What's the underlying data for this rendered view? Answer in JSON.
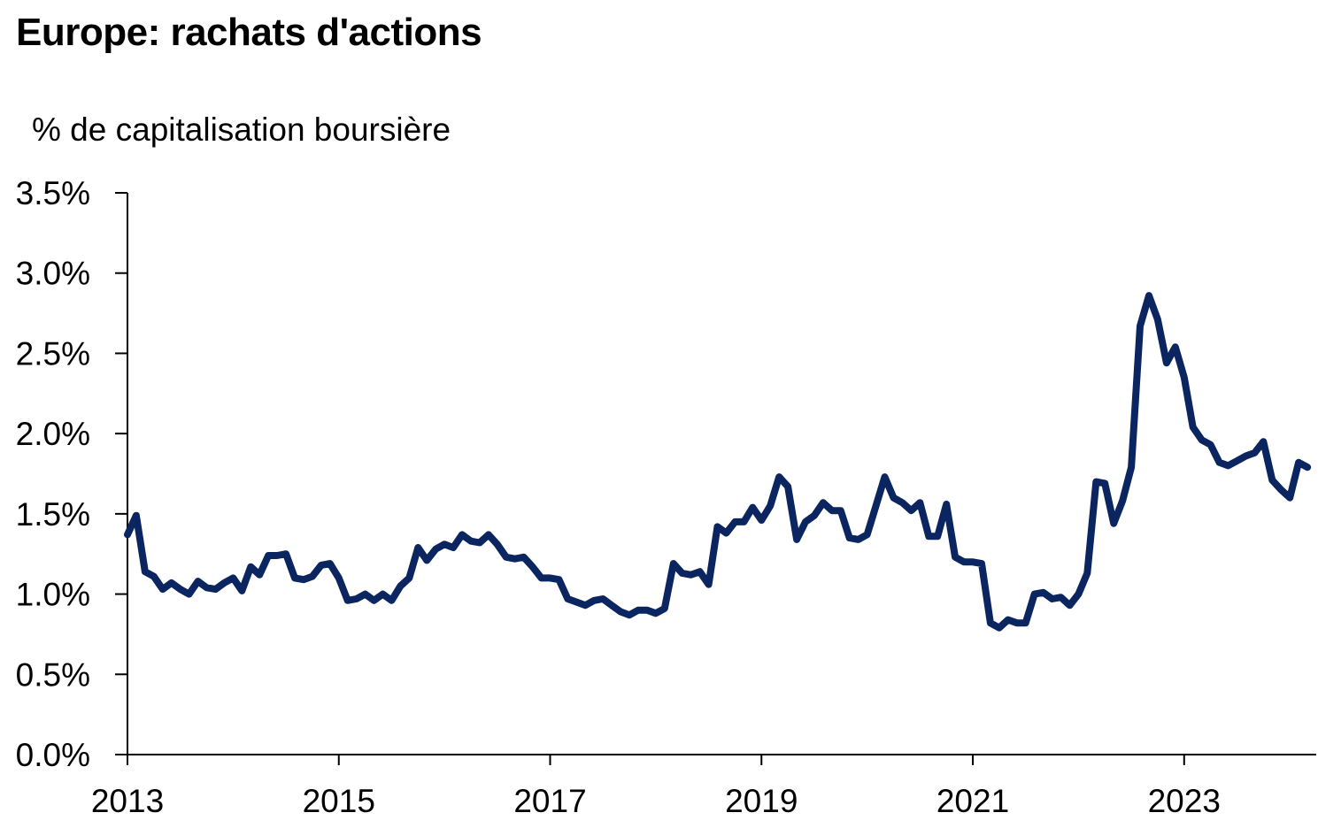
{
  "chart_data": {
    "type": "line",
    "title": "Europe: rachats d'actions",
    "ylabel": "% de capitalisation boursière",
    "xlabel": "",
    "ylim": [
      0,
      3.5
    ],
    "y_ticks": [
      "0.0%",
      "0.5%",
      "1.0%",
      "1.5%",
      "2.0%",
      "2.5%",
      "3.0%",
      "3.5%"
    ],
    "x_ticks": [
      "2013",
      "2015",
      "2017",
      "2019",
      "2021",
      "2023"
    ],
    "line_color": "#0b2560",
    "series": [
      {
        "values": [
          [
            "2013-01",
            1.37
          ],
          [
            "2013-02",
            1.49
          ],
          [
            "2013-03",
            1.14
          ],
          [
            "2013-04",
            1.11
          ],
          [
            "2013-05",
            1.03
          ],
          [
            "2013-06",
            1.07
          ],
          [
            "2013-07",
            1.03
          ],
          [
            "2013-08",
            1.0
          ],
          [
            "2013-09",
            1.08
          ],
          [
            "2013-10",
            1.04
          ],
          [
            "2013-11",
            1.03
          ],
          [
            "2013-12",
            1.07
          ],
          [
            "2014-01",
            1.1
          ],
          [
            "2014-02",
            1.02
          ],
          [
            "2014-03",
            1.17
          ],
          [
            "2014-04",
            1.12
          ],
          [
            "2014-05",
            1.24
          ],
          [
            "2014-06",
            1.24
          ],
          [
            "2014-07",
            1.25
          ],
          [
            "2014-08",
            1.1
          ],
          [
            "2014-09",
            1.09
          ],
          [
            "2014-10",
            1.11
          ],
          [
            "2014-11",
            1.18
          ],
          [
            "2014-12",
            1.19
          ],
          [
            "2015-01",
            1.1
          ],
          [
            "2015-02",
            0.96
          ],
          [
            "2015-03",
            0.97
          ],
          [
            "2015-04",
            1.0
          ],
          [
            "2015-05",
            0.96
          ],
          [
            "2015-06",
            1.0
          ],
          [
            "2015-07",
            0.96
          ],
          [
            "2015-08",
            1.05
          ],
          [
            "2015-09",
            1.1
          ],
          [
            "2015-10",
            1.29
          ],
          [
            "2015-11",
            1.21
          ],
          [
            "2015-12",
            1.28
          ],
          [
            "2016-01",
            1.31
          ],
          [
            "2016-02",
            1.29
          ],
          [
            "2016-03",
            1.37
          ],
          [
            "2016-04",
            1.33
          ],
          [
            "2016-05",
            1.32
          ],
          [
            "2016-06",
            1.37
          ],
          [
            "2016-07",
            1.31
          ],
          [
            "2016-08",
            1.23
          ],
          [
            "2016-09",
            1.22
          ],
          [
            "2016-10",
            1.23
          ],
          [
            "2016-11",
            1.17
          ],
          [
            "2016-12",
            1.1
          ],
          [
            "2017-01",
            1.1
          ],
          [
            "2017-02",
            1.09
          ],
          [
            "2017-03",
            0.97
          ],
          [
            "2017-04",
            0.95
          ],
          [
            "2017-05",
            0.93
          ],
          [
            "2017-06",
            0.96
          ],
          [
            "2017-07",
            0.97
          ],
          [
            "2017-08",
            0.93
          ],
          [
            "2017-09",
            0.89
          ],
          [
            "2017-10",
            0.87
          ],
          [
            "2017-11",
            0.9
          ],
          [
            "2017-12",
            0.9
          ],
          [
            "2018-01",
            0.88
          ],
          [
            "2018-02",
            0.91
          ],
          [
            "2018-03",
            1.19
          ],
          [
            "2018-04",
            1.13
          ],
          [
            "2018-05",
            1.12
          ],
          [
            "2018-06",
            1.14
          ],
          [
            "2018-07",
            1.06
          ],
          [
            "2018-08",
            1.42
          ],
          [
            "2018-09",
            1.38
          ],
          [
            "2018-10",
            1.45
          ],
          [
            "2018-11",
            1.45
          ],
          [
            "2018-12",
            1.54
          ],
          [
            "2019-01",
            1.46
          ],
          [
            "2019-02",
            1.55
          ],
          [
            "2019-03",
            1.73
          ],
          [
            "2019-04",
            1.67
          ],
          [
            "2019-05",
            1.34
          ],
          [
            "2019-06",
            1.45
          ],
          [
            "2019-07",
            1.49
          ],
          [
            "2019-08",
            1.57
          ],
          [
            "2019-09",
            1.52
          ],
          [
            "2019-10",
            1.52
          ],
          [
            "2019-11",
            1.35
          ],
          [
            "2019-12",
            1.34
          ],
          [
            "2020-01",
            1.37
          ],
          [
            "2020-02",
            1.55
          ],
          [
            "2020-03",
            1.73
          ],
          [
            "2020-04",
            1.6
          ],
          [
            "2020-05",
            1.57
          ],
          [
            "2020-06",
            1.52
          ],
          [
            "2020-07",
            1.57
          ],
          [
            "2020-08",
            1.36
          ],
          [
            "2020-09",
            1.36
          ],
          [
            "2020-10",
            1.56
          ],
          [
            "2020-11",
            1.23
          ],
          [
            "2020-12",
            1.2
          ],
          [
            "2021-01",
            1.2
          ],
          [
            "2021-02",
            1.19
          ],
          [
            "2021-03",
            0.82
          ],
          [
            "2021-04",
            0.79
          ],
          [
            "2021-05",
            0.84
          ],
          [
            "2021-06",
            0.82
          ],
          [
            "2021-07",
            0.82
          ],
          [
            "2021-08",
            1.0
          ],
          [
            "2021-09",
            1.01
          ],
          [
            "2021-10",
            0.97
          ],
          [
            "2021-11",
            0.98
          ],
          [
            "2021-12",
            0.93
          ],
          [
            "2022-01",
            1.0
          ],
          [
            "2022-02",
            1.13
          ],
          [
            "2022-03",
            1.7
          ],
          [
            "2022-04",
            1.69
          ],
          [
            "2022-05",
            1.44
          ],
          [
            "2022-06",
            1.58
          ],
          [
            "2022-07",
            1.79
          ],
          [
            "2022-08",
            2.67
          ],
          [
            "2022-09",
            2.86
          ],
          [
            "2022-10",
            2.71
          ],
          [
            "2022-11",
            2.44
          ],
          [
            "2022-12",
            2.54
          ],
          [
            "2023-01",
            2.35
          ],
          [
            "2023-02",
            2.04
          ],
          [
            "2023-03",
            1.96
          ],
          [
            "2023-04",
            1.93
          ],
          [
            "2023-05",
            1.82
          ],
          [
            "2023-06",
            1.8
          ],
          [
            "2023-07",
            1.83
          ],
          [
            "2023-08",
            1.86
          ],
          [
            "2023-09",
            1.88
          ],
          [
            "2023-10",
            1.95
          ],
          [
            "2023-11",
            1.71
          ],
          [
            "2023-12",
            1.65
          ],
          [
            "2024-01",
            1.6
          ],
          [
            "2024-02",
            1.82
          ],
          [
            "2024-03",
            1.79
          ]
        ]
      }
    ]
  }
}
